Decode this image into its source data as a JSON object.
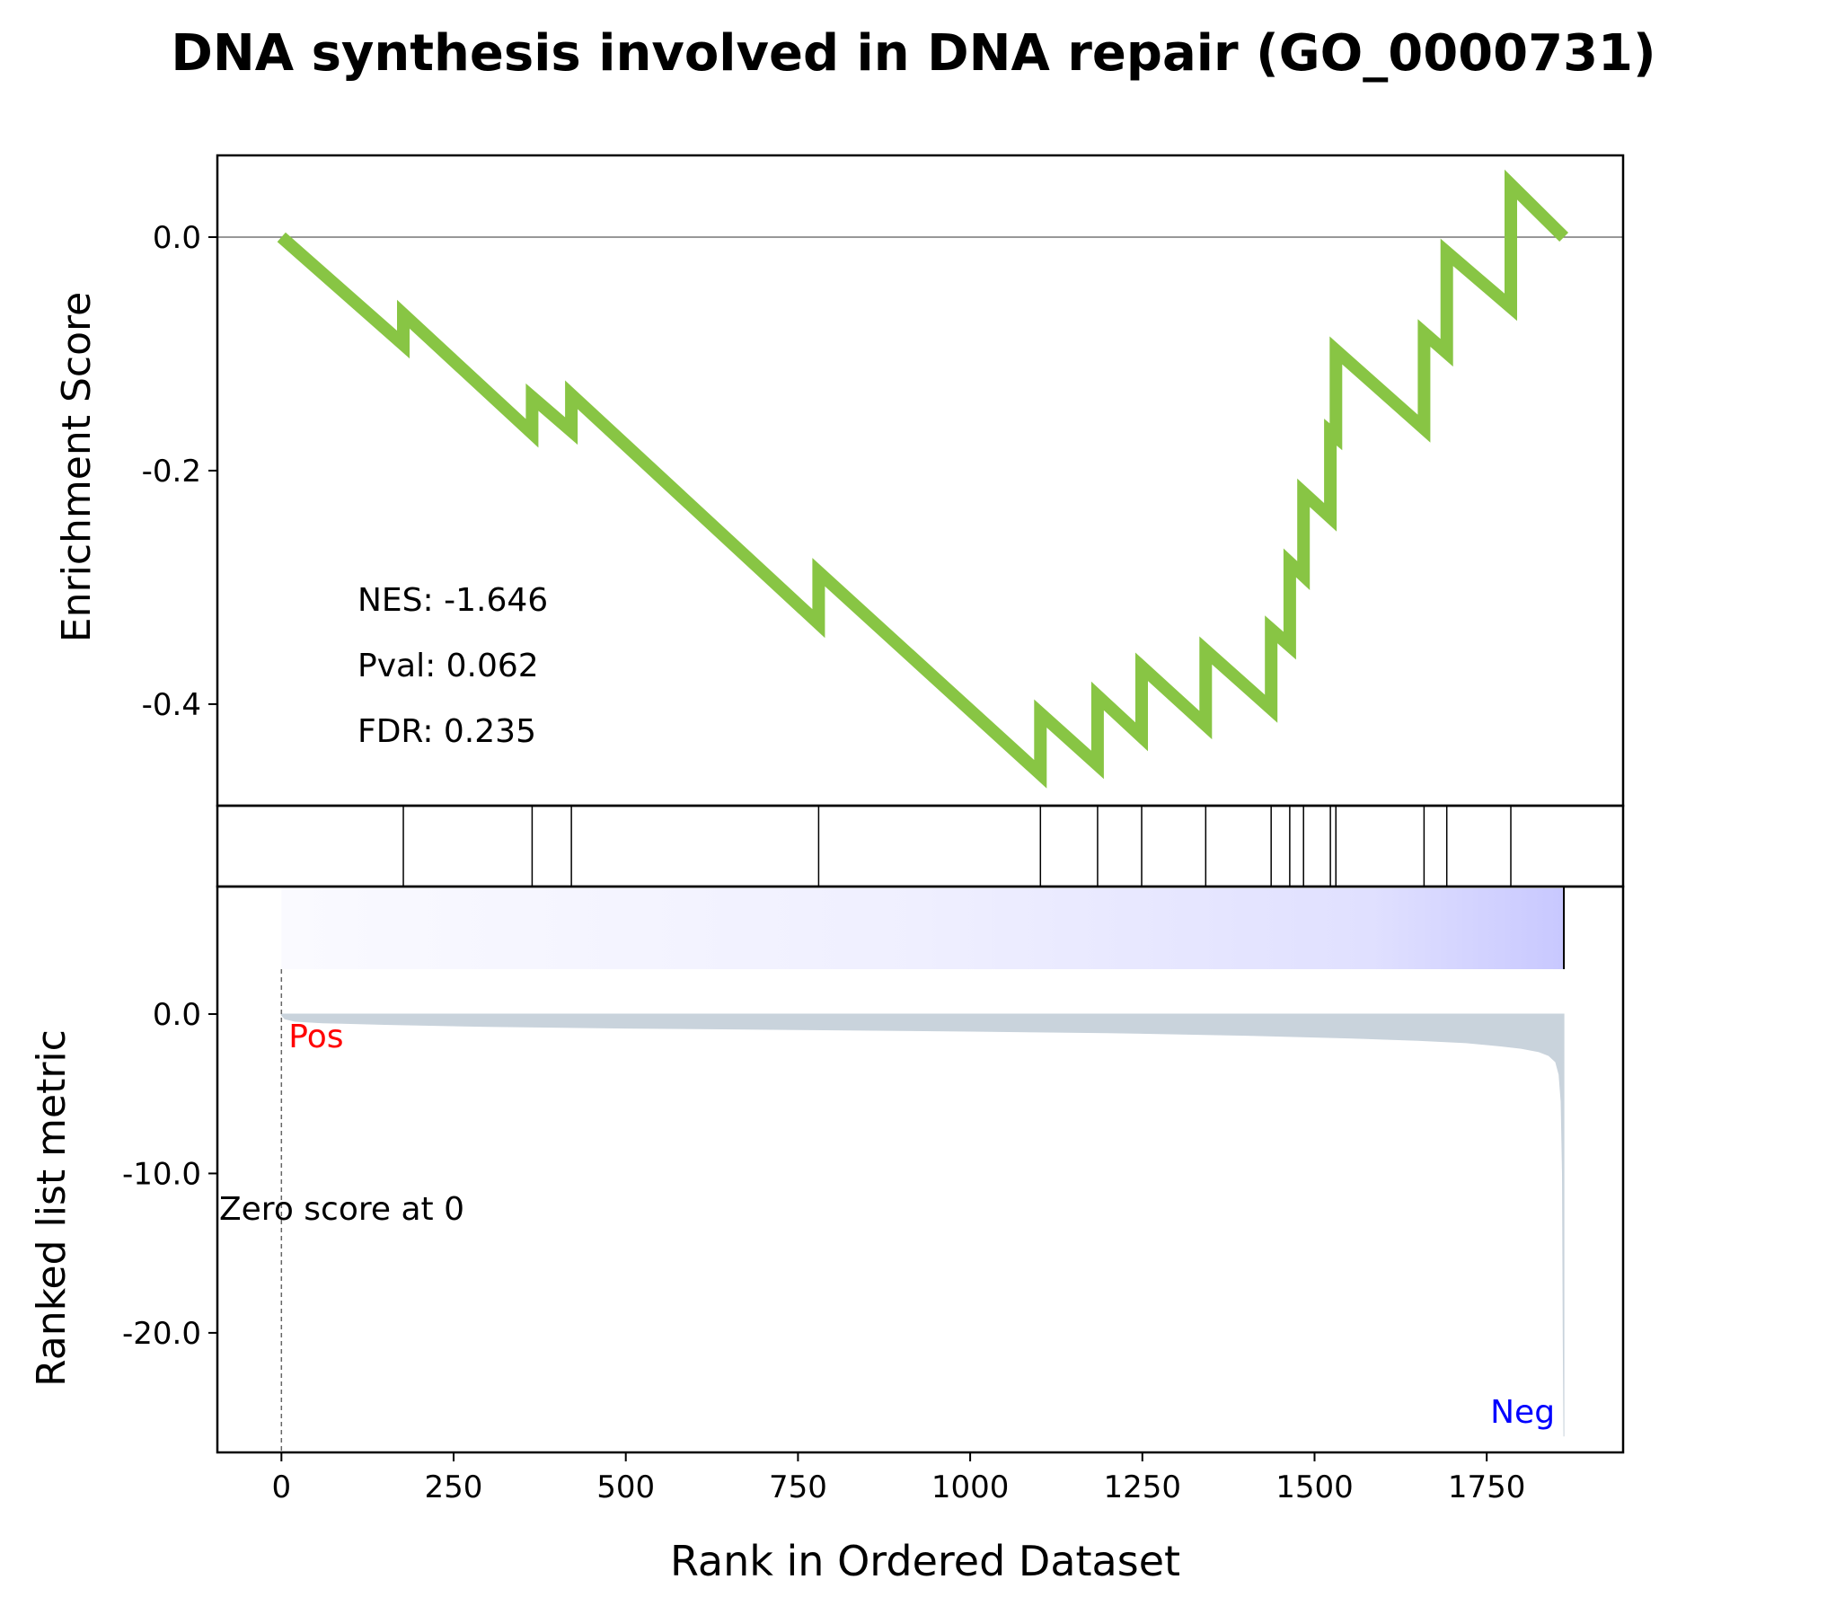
{
  "chart_data": {
    "type": "line",
    "title": "DNA synthesis involved in DNA repair (GO_0000731)",
    "xlabel": "Rank in Ordered Dataset",
    "x_ticks": [
      "0",
      "250",
      "500",
      "750",
      "1000",
      "1250",
      "1500",
      "1750"
    ],
    "x_tick_values": [
      0,
      250,
      500,
      750,
      1000,
      1250,
      1500,
      1750
    ],
    "xlim": [
      -93,
      1948
    ],
    "n_genes": 1862,
    "panels": {
      "enrichment": {
        "ylabel": "Enrichment Score",
        "ylim": [
          -0.487,
          0.07
        ],
        "y_ticks": [
          "0.0",
          "-0.2",
          "-0.4"
        ],
        "y_tick_values": [
          0.0,
          -0.2,
          -0.4
        ],
        "color": "#88c544",
        "stats": [
          "NES: -1.646",
          "Pval: 0.062",
          "FDR: 0.235"
        ],
        "hits": [
          177,
          364,
          421,
          780,
          1102,
          1185,
          1249,
          1342,
          1437,
          1464,
          1484,
          1523,
          1531,
          1659,
          1692,
          1785
        ],
        "running_es": [
          [
            0,
            0.0
          ],
          [
            177,
            -0.092
          ],
          [
            177,
            -0.066
          ],
          [
            364,
            -0.168
          ],
          [
            364,
            -0.137
          ],
          [
            421,
            -0.166
          ],
          [
            421,
            -0.135
          ],
          [
            780,
            -0.331
          ],
          [
            780,
            -0.287
          ],
          [
            1102,
            -0.46
          ],
          [
            1102,
            -0.408
          ],
          [
            1185,
            -0.452
          ],
          [
            1185,
            -0.393
          ],
          [
            1249,
            -0.428
          ],
          [
            1249,
            -0.368
          ],
          [
            1342,
            -0.418
          ],
          [
            1342,
            -0.354
          ],
          [
            1437,
            -0.404
          ],
          [
            1437,
            -0.336
          ],
          [
            1464,
            -0.35
          ],
          [
            1464,
            -0.279
          ],
          [
            1484,
            -0.29
          ],
          [
            1484,
            -0.219
          ],
          [
            1523,
            -0.24
          ],
          [
            1523,
            -0.167
          ],
          [
            1531,
            -0.171
          ],
          [
            1531,
            -0.097
          ],
          [
            1659,
            -0.164
          ],
          [
            1659,
            -0.082
          ],
          [
            1692,
            -0.099
          ],
          [
            1692,
            -0.013
          ],
          [
            1785,
            -0.06
          ],
          [
            1785,
            0.045
          ],
          [
            1862,
            0.0
          ]
        ]
      },
      "ranked_metric": {
        "ylabel": "Ranked list metric",
        "ylim": [
          -27.5,
          8
        ],
        "y_ticks": [
          "0.0",
          "-10.0",
          "-20.0"
        ],
        "y_tick_values": [
          0,
          -10,
          -20
        ],
        "fill_color": "#c9d3dc",
        "pos_label": "Pos",
        "pos_color": "#ff0000",
        "neg_label": "Neg",
        "neg_color": "#0000ff",
        "zero_label": "Zero score at 0",
        "zero_rank": 0,
        "metric_curve": [
          [
            0,
            -0.05
          ],
          [
            5,
            -0.3
          ],
          [
            20,
            -0.45
          ],
          [
            60,
            -0.55
          ],
          [
            150,
            -0.65
          ],
          [
            300,
            -0.78
          ],
          [
            500,
            -0.88
          ],
          [
            750,
            -0.97
          ],
          [
            1000,
            -1.07
          ],
          [
            1200,
            -1.17
          ],
          [
            1400,
            -1.33
          ],
          [
            1550,
            -1.5
          ],
          [
            1650,
            -1.65
          ],
          [
            1720,
            -1.8
          ],
          [
            1770,
            -2.0
          ],
          [
            1800,
            -2.15
          ],
          [
            1825,
            -2.35
          ],
          [
            1840,
            -2.6
          ],
          [
            1850,
            -3.0
          ],
          [
            1855,
            -3.8
          ],
          [
            1858,
            -5.5
          ],
          [
            1860,
            -10.0
          ],
          [
            1861,
            -20.0
          ],
          [
            1862,
            -26.5
          ]
        ]
      }
    }
  }
}
